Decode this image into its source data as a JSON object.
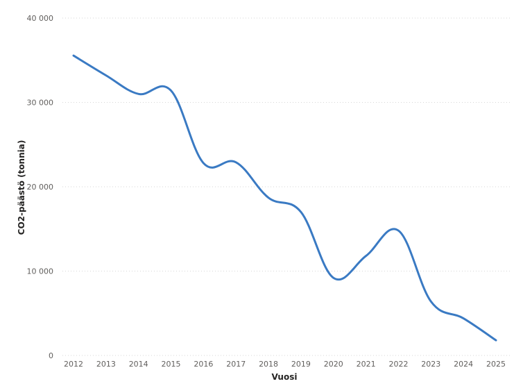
{
  "chart_data": {
    "type": "line",
    "title": "",
    "xlabel": "Vuosi",
    "ylabel": "CO2-päästö (tonnia)",
    "categories": [
      "2012",
      "2013",
      "2014",
      "2015",
      "2016",
      "2017",
      "2018",
      "2019",
      "2020",
      "2021",
      "2022",
      "2023",
      "2024",
      "2025"
    ],
    "series": [
      {
        "name": "CO2-päästö (tonnia)",
        "color": "#3a7ac3",
        "values": [
          35550,
          33200,
          31000,
          31400,
          22800,
          22900,
          18700,
          17000,
          9200,
          11800,
          14800,
          6400,
          4400,
          1800
        ]
      }
    ],
    "ylim": [
      0,
      40000
    ],
    "yticks": [
      0,
      10000,
      20000,
      30000,
      40000
    ],
    "ytick_labels": [
      "0",
      "10 000",
      "20 000",
      "30 000",
      "40 000"
    ],
    "grid": true,
    "legend": "none"
  }
}
